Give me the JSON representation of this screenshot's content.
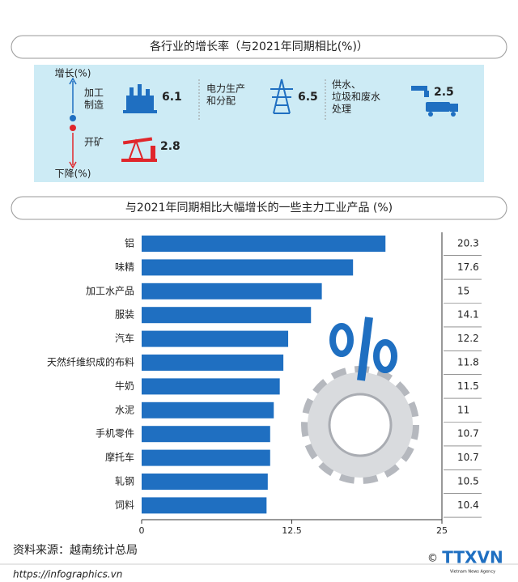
{
  "header": {
    "title": "各行业的增长率（与2021年同期相比(%)）"
  },
  "growth_panel": {
    "up_label": "增长(%)",
    "down_label": "下降(%)",
    "items": [
      {
        "label": [
          "加工",
          "制造"
        ],
        "value": 6.1
      },
      {
        "label": [
          "电力生产",
          "和分配"
        ],
        "value": 6.5
      },
      {
        "label": [
          "供水、",
          "垃圾和废水",
          "处理"
        ],
        "value": 2.5
      },
      {
        "label": [
          "开矿"
        ],
        "value": 2.8
      }
    ]
  },
  "chart_data": {
    "type": "bar",
    "orientation": "horizontal",
    "title": "与2021年同期相比大幅增长的一些主力工业产品 (%)",
    "categories": [
      "铝",
      "味精",
      "加工水产品",
      "服装",
      "汽车",
      "天然纤维织成的布料",
      "牛奶",
      "水泥",
      "手机零件",
      "摩托车",
      "轧钢",
      "饲料"
    ],
    "values": [
      20.3,
      17.6,
      15,
      14.1,
      12.2,
      11.8,
      11.5,
      11,
      10.7,
      10.7,
      10.5,
      10.4
    ],
    "color": "#1f6fc1",
    "xlim": [
      0,
      25
    ],
    "xticks": [
      0,
      12.5,
      25
    ]
  },
  "source": "资料来源：越南统计总局",
  "footer": {
    "url": "https://infographics.vn",
    "logo": "TTXVN",
    "agency": "Vietnam News Agency"
  }
}
